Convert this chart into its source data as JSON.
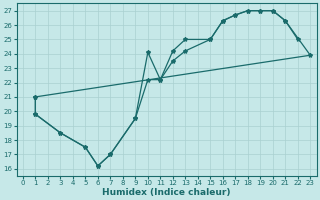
{
  "xlabel": "Humidex (Indice chaleur)",
  "xlim": [
    -0.5,
    23.5
  ],
  "ylim": [
    15.5,
    27.5
  ],
  "xticks": [
    0,
    1,
    2,
    3,
    4,
    5,
    6,
    7,
    8,
    9,
    10,
    11,
    12,
    13,
    14,
    15,
    16,
    17,
    18,
    19,
    20,
    21,
    22,
    23
  ],
  "yticks": [
    16,
    17,
    18,
    19,
    20,
    21,
    22,
    23,
    24,
    25,
    26,
    27
  ],
  "bg_color": "#c6e8e8",
  "grid_color": "#aad0d0",
  "line_color": "#1a6b6b",
  "line1_x": [
    1,
    1,
    3,
    5,
    6,
    7,
    9,
    10,
    11,
    12,
    13,
    15,
    16,
    17,
    18,
    19,
    20,
    21,
    22
  ],
  "line1_y": [
    21.0,
    19.8,
    18.5,
    17.5,
    16.2,
    17.0,
    19.5,
    24.1,
    22.2,
    24.2,
    25.0,
    25.0,
    26.3,
    26.7,
    27.0,
    27.0,
    27.0,
    26.3,
    25.0
  ],
  "line2_x": [
    1,
    1,
    3,
    5,
    6,
    7,
    9,
    10,
    11,
    12,
    13,
    15,
    16,
    17,
    18,
    19,
    20,
    21,
    23
  ],
  "line2_y": [
    21.0,
    19.8,
    18.5,
    17.5,
    16.2,
    17.0,
    19.5,
    22.2,
    22.2,
    23.5,
    24.2,
    25.0,
    26.3,
    26.7,
    27.0,
    27.0,
    27.0,
    26.3,
    23.9
  ],
  "line3_x": [
    1,
    23
  ],
  "line3_y": [
    21.0,
    23.9
  ]
}
